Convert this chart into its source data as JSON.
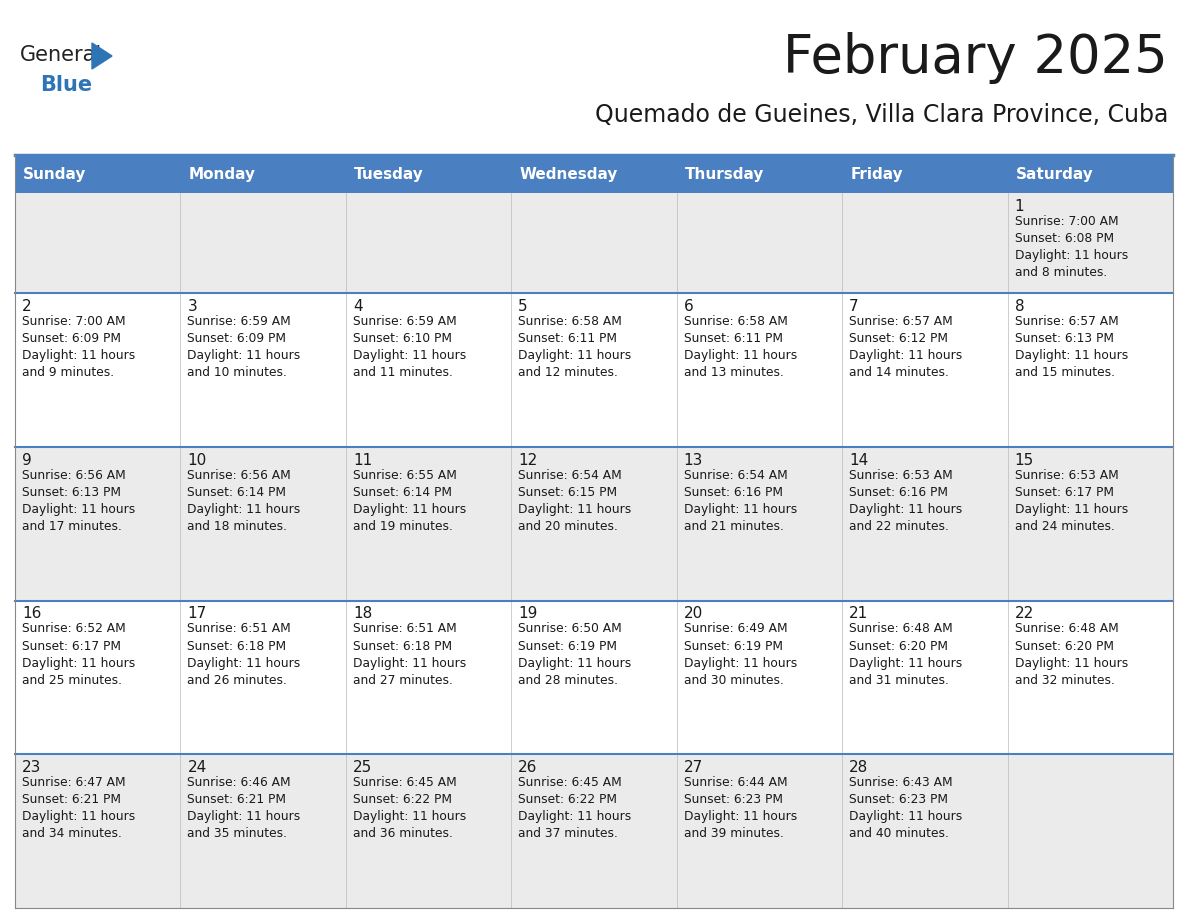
{
  "title": "February 2025",
  "subtitle": "Quemado de Gueines, Villa Clara Province, Cuba",
  "header_bg": "#4a7fc1",
  "header_text_color": "#FFFFFF",
  "cell_bg_row0": "#EBEBEB",
  "cell_bg_row1": "#FFFFFF",
  "cell_bg_row2": "#EBEBEB",
  "cell_bg_row3": "#FFFFFF",
  "cell_bg_row4": "#EBEBEB",
  "day_names": [
    "Sunday",
    "Monday",
    "Tuesday",
    "Wednesday",
    "Thursday",
    "Friday",
    "Saturday"
  ],
  "title_color": "#1a1a1a",
  "subtitle_color": "#1a1a1a",
  "date_color": "#1a1a1a",
  "info_color": "#1a1a1a",
  "separator_color": "#4a7fc1",
  "border_color": "#4a7fc1",
  "calendar_data": [
    [
      null,
      null,
      null,
      null,
      null,
      null,
      {
        "day": 1,
        "sunrise": "7:00 AM",
        "sunset": "6:08 PM",
        "daylight": "11 hours and 8 minutes."
      }
    ],
    [
      {
        "day": 2,
        "sunrise": "7:00 AM",
        "sunset": "6:09 PM",
        "daylight": "11 hours and 9 minutes."
      },
      {
        "day": 3,
        "sunrise": "6:59 AM",
        "sunset": "6:09 PM",
        "daylight": "11 hours and 10 minutes."
      },
      {
        "day": 4,
        "sunrise": "6:59 AM",
        "sunset": "6:10 PM",
        "daylight": "11 hours and 11 minutes."
      },
      {
        "day": 5,
        "sunrise": "6:58 AM",
        "sunset": "6:11 PM",
        "daylight": "11 hours and 12 minutes."
      },
      {
        "day": 6,
        "sunrise": "6:58 AM",
        "sunset": "6:11 PM",
        "daylight": "11 hours and 13 minutes."
      },
      {
        "day": 7,
        "sunrise": "6:57 AM",
        "sunset": "6:12 PM",
        "daylight": "11 hours and 14 minutes."
      },
      {
        "day": 8,
        "sunrise": "6:57 AM",
        "sunset": "6:13 PM",
        "daylight": "11 hours and 15 minutes."
      }
    ],
    [
      {
        "day": 9,
        "sunrise": "6:56 AM",
        "sunset": "6:13 PM",
        "daylight": "11 hours and 17 minutes."
      },
      {
        "day": 10,
        "sunrise": "6:56 AM",
        "sunset": "6:14 PM",
        "daylight": "11 hours and 18 minutes."
      },
      {
        "day": 11,
        "sunrise": "6:55 AM",
        "sunset": "6:14 PM",
        "daylight": "11 hours and 19 minutes."
      },
      {
        "day": 12,
        "sunrise": "6:54 AM",
        "sunset": "6:15 PM",
        "daylight": "11 hours and 20 minutes."
      },
      {
        "day": 13,
        "sunrise": "6:54 AM",
        "sunset": "6:16 PM",
        "daylight": "11 hours and 21 minutes."
      },
      {
        "day": 14,
        "sunrise": "6:53 AM",
        "sunset": "6:16 PM",
        "daylight": "11 hours and 22 minutes."
      },
      {
        "day": 15,
        "sunrise": "6:53 AM",
        "sunset": "6:17 PM",
        "daylight": "11 hours and 24 minutes."
      }
    ],
    [
      {
        "day": 16,
        "sunrise": "6:52 AM",
        "sunset": "6:17 PM",
        "daylight": "11 hours and 25 minutes."
      },
      {
        "day": 17,
        "sunrise": "6:51 AM",
        "sunset": "6:18 PM",
        "daylight": "11 hours and 26 minutes."
      },
      {
        "day": 18,
        "sunrise": "6:51 AM",
        "sunset": "6:18 PM",
        "daylight": "11 hours and 27 minutes."
      },
      {
        "day": 19,
        "sunrise": "6:50 AM",
        "sunset": "6:19 PM",
        "daylight": "11 hours and 28 minutes."
      },
      {
        "day": 20,
        "sunrise": "6:49 AM",
        "sunset": "6:19 PM",
        "daylight": "11 hours and 30 minutes."
      },
      {
        "day": 21,
        "sunrise": "6:48 AM",
        "sunset": "6:20 PM",
        "daylight": "11 hours and 31 minutes."
      },
      {
        "day": 22,
        "sunrise": "6:48 AM",
        "sunset": "6:20 PM",
        "daylight": "11 hours and 32 minutes."
      }
    ],
    [
      {
        "day": 23,
        "sunrise": "6:47 AM",
        "sunset": "6:21 PM",
        "daylight": "11 hours and 34 minutes."
      },
      {
        "day": 24,
        "sunrise": "6:46 AM",
        "sunset": "6:21 PM",
        "daylight": "11 hours and 35 minutes."
      },
      {
        "day": 25,
        "sunrise": "6:45 AM",
        "sunset": "6:22 PM",
        "daylight": "11 hours and 36 minutes."
      },
      {
        "day": 26,
        "sunrise": "6:45 AM",
        "sunset": "6:22 PM",
        "daylight": "11 hours and 37 minutes."
      },
      {
        "day": 27,
        "sunrise": "6:44 AM",
        "sunset": "6:23 PM",
        "daylight": "11 hours and 39 minutes."
      },
      {
        "day": 28,
        "sunrise": "6:43 AM",
        "sunset": "6:23 PM",
        "daylight": "11 hours and 40 minutes."
      },
      null
    ]
  ]
}
